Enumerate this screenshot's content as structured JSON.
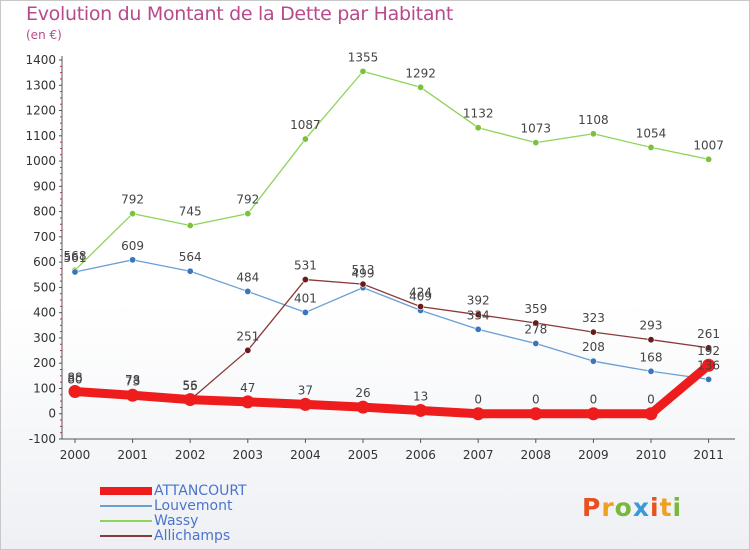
{
  "title": "Evolution du Montant de la Dette par Habitant",
  "subtitle": "(en €)",
  "logo": {
    "text": "Proxiti",
    "letters": [
      {
        "ch": "P",
        "color": "#e8501f"
      },
      {
        "ch": "r",
        "color": "#f0a020"
      },
      {
        "ch": "o",
        "color": "#7ab83c"
      },
      {
        "ch": "x",
        "color": "#3a9ad8"
      },
      {
        "ch": "i",
        "color": "#e8501f"
      },
      {
        "ch": "t",
        "color": "#f0a020"
      },
      {
        "ch": "i",
        "color": "#7ab83c"
      }
    ]
  },
  "chart_data": {
    "type": "line",
    "categories": [
      "2000",
      "2001",
      "2002",
      "2003",
      "2004",
      "2005",
      "2006",
      "2007",
      "2008",
      "2009",
      "2010",
      "2011"
    ],
    "ylim": [
      -100,
      1400
    ],
    "yticks": [
      -100,
      0,
      100,
      200,
      300,
      400,
      500,
      600,
      700,
      800,
      900,
      1000,
      1100,
      1200,
      1300,
      1400
    ],
    "grid": false,
    "legend_position": "bottom-left",
    "series": [
      {
        "name": "Wassy",
        "color": "#8fd35a",
        "marker": "#7cc040",
        "values": [
          568,
          792,
          745,
          792,
          1087,
          1355,
          1292,
          1132,
          1073,
          1108,
          1054,
          1007
        ]
      },
      {
        "name": "Louvemont",
        "color": "#6a9fd4",
        "marker": "#3a76b8",
        "values": [
          561,
          609,
          564,
          484,
          401,
          499,
          409,
          334,
          278,
          208,
          168,
          136
        ]
      },
      {
        "name": "Allichamps",
        "color": "#8a3a3a",
        "marker": "#6a1a1a",
        "values": [
          80,
          78,
          55,
          251,
          531,
          513,
          424,
          392,
          359,
          323,
          293,
          261
        ]
      },
      {
        "name": "ATTANCOURT",
        "color": "#ee1c1c",
        "marker": "#ee1c1c",
        "values": [
          88,
          73,
          56,
          47,
          37,
          26,
          13,
          0,
          0,
          0,
          0,
          192
        ]
      }
    ]
  }
}
